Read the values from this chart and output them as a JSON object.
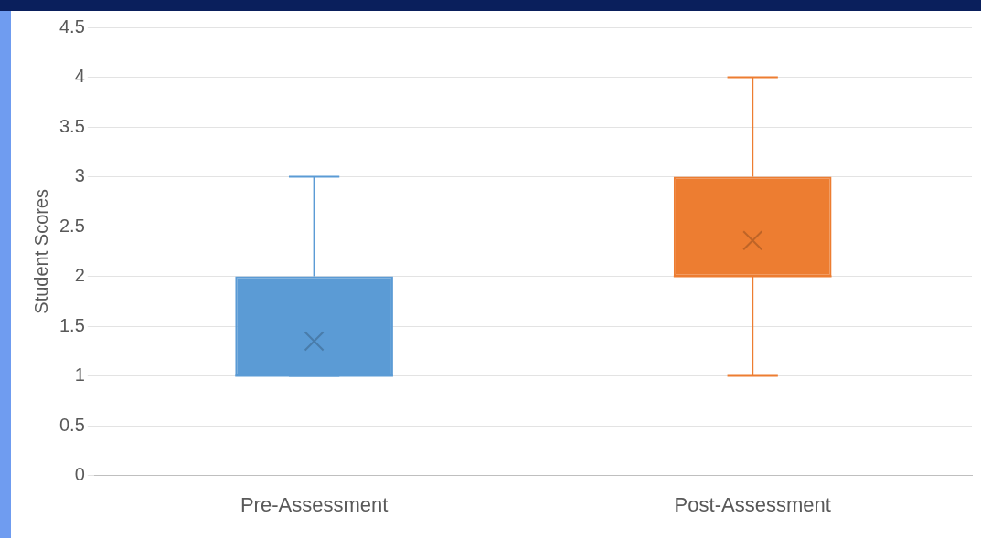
{
  "chart_data": {
    "type": "box",
    "ylabel": "Student Scores",
    "categories": [
      "Pre-Assessment",
      "Post-Assessment"
    ],
    "boxes": [
      {
        "low": 1,
        "q1": 1,
        "median": 1,
        "q3": 2,
        "high": 3,
        "mean": 1.35
      },
      {
        "low": 1,
        "q1": 2,
        "median": 2,
        "q3": 3,
        "high": 4,
        "mean": 2.36
      }
    ],
    "colors": [
      "#5b9bd5",
      "#ed7d31"
    ],
    "ylim": [
      0,
      4.5
    ],
    "yticks": [
      0,
      0.5,
      1,
      1.5,
      2,
      2.5,
      3,
      3.5,
      4,
      4.5
    ],
    "grid": "y",
    "legend": false
  }
}
